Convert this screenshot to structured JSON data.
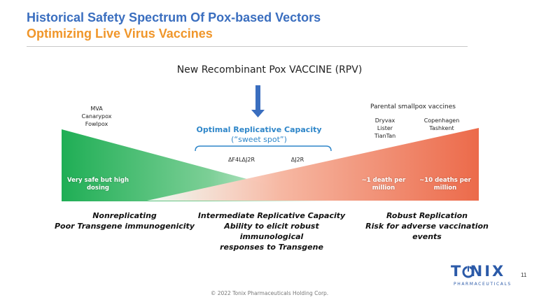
{
  "header": {
    "title": "Historical Safety Spectrum Of Pox-based Vectors",
    "subtitle": "Optimizing Live Virus Vaccines"
  },
  "diagram": {
    "center_title": "New Recombinant Pox VACCINE (RPV)",
    "left_strains": [
      "MVA",
      "Canarypox",
      "Fowlpox"
    ],
    "parental_title": "Parental smallpox vaccines",
    "parental_group1": [
      "Dryvax",
      "Lister",
      "TianTan"
    ],
    "parental_group2": [
      "Copenhagen",
      "Tashkent"
    ],
    "optimal_label": "Optimal Replicative Capacity",
    "sweet_spot": "(“sweet spot”)",
    "delta1": "ΔF4LΔJ2R",
    "delta2": "ΔJ2R",
    "safe_label": [
      "Very safe but high",
      "dosing"
    ],
    "death1": [
      "~1 death per",
      "million"
    ],
    "death10": [
      "~10 deaths per",
      "million"
    ],
    "colors": {
      "green": "#1fae55",
      "red": "#ec6a4a",
      "blue": "#2e86c9",
      "arrow": "#3a6ebf"
    }
  },
  "captions": {
    "left": [
      "Nonreplicating",
      "Poor Transgene immunogenicity"
    ],
    "middle": [
      "Intermediate Replicative Capacity",
      "Ability to elicit robust immunological",
      "responses to Transgene"
    ],
    "right": [
      "Robust Replication",
      "Risk for adverse vaccination events"
    ]
  },
  "footer": {
    "page_number": "11",
    "copyright": "© 2022 Tonix Pharmaceuticals Holding Corp.",
    "logo_text": "T NIX",
    "logo_sub": "PHARMACEUTICALS"
  }
}
